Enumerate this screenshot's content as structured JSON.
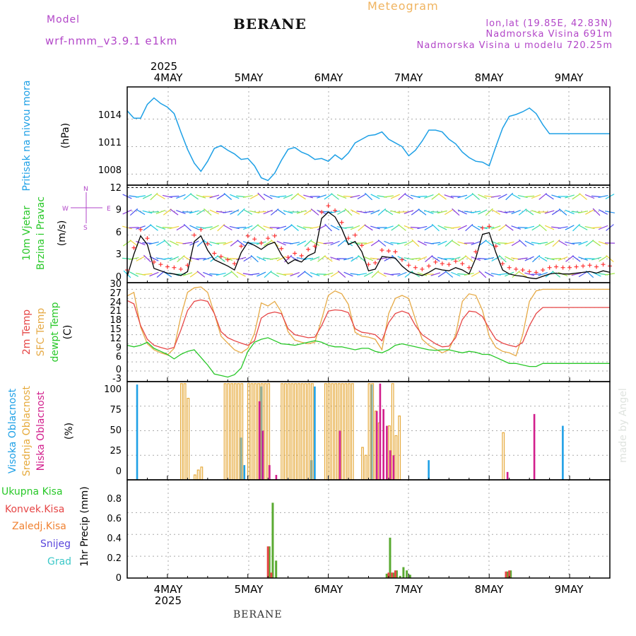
{
  "header": {
    "model_label": "Model",
    "model_name": "wrf-nmm_v3.9.1 e1km",
    "station": "BERANE",
    "title": "Meteogram",
    "coords": "lon,lat (19.85E, 42.83N)",
    "altitude": "Nadmorska Visina 691m",
    "model_altitude": "Nadmorska Visina u modelu 720.25m",
    "year": "2025",
    "footer_station": "BERANE",
    "watermark": "made by Angel"
  },
  "day_labels": [
    "4MAY",
    "5MAY",
    "6MAY",
    "7MAY",
    "8MAY",
    "9MAY"
  ],
  "panels": {
    "pressure": {
      "label": "Pritisak na nivou mora",
      "unit": "(hPa)",
      "ticks": [
        "1014",
        "1011",
        "1008"
      ]
    },
    "wind": {
      "label1": "10m Vjetar",
      "label2": "Brzina i Pravac",
      "unit": "(m/s)",
      "ticks": [
        "12",
        "9",
        "6",
        "3",
        "0"
      ],
      "compass": {
        "w": "W",
        "e": "E",
        "n": "N",
        "s": "S"
      }
    },
    "temp": {
      "label1": "2m Temp",
      "label2": "SFC Temp",
      "label3": "dewpt Temp",
      "unit": "(C)",
      "ticks": [
        "30",
        "27",
        "24",
        "21",
        "18",
        "15",
        "12",
        "9",
        "6",
        "3",
        "0",
        "-3"
      ]
    },
    "cloud": {
      "label1": "Visoka Oblacnost",
      "label2": "Srednja Oblacnost",
      "label3": "Niska Oblacnost",
      "unit": "(%)",
      "ticks": [
        "100",
        "75",
        "50",
        "25",
        "0"
      ]
    },
    "precip": {
      "label": "1hr Precip (mm)",
      "ticks": [
        "0.8",
        "0.6",
        "0.4",
        "0.2",
        "0"
      ],
      "legend": [
        "Ukupna Kisa",
        "Konvek.Kisa",
        "Zaledj.Kisa",
        "Snijeg",
        "Grad"
      ]
    }
  },
  "colors": {
    "pressure": "#1ea0e6",
    "temp2m": "#e64646",
    "sfc": "#e6aa46",
    "dew": "#28c828",
    "high_cloud": "#1ea0e6",
    "mid_cloud": "#e6aa3c",
    "low_cloud": "#d21e8c",
    "total_rain": "#5aaa32",
    "conv_rain": "#e64646",
    "frz_rain": "#f08232",
    "snow": "#5a46dc",
    "hail": "#3cc8c8",
    "wind_speed": "#000000",
    "gust": "#ff3232"
  },
  "chart_data": [
    {
      "type": "line",
      "title": "",
      "ylabel": "(hPa)",
      "ylim": [
        1006.8,
        1017.5
      ],
      "series": [
        {
          "name": "Pritisak na nivou mora",
          "x": [
            0,
            2,
            4,
            6,
            8,
            10,
            12,
            14,
            16,
            18,
            20,
            22,
            24,
            26,
            28,
            30,
            32,
            34,
            36,
            38,
            40,
            42,
            44,
            46,
            48,
            50,
            52,
            54,
            56,
            58,
            60,
            62,
            64,
            66,
            68,
            70,
            72,
            74,
            76,
            78,
            80,
            82,
            84,
            86,
            88,
            90,
            92,
            94,
            96,
            98,
            100,
            102,
            104,
            106,
            108,
            110,
            112,
            114,
            116,
            118,
            120,
            122,
            124,
            126,
            128,
            130,
            132,
            134,
            136,
            138,
            140,
            142,
            144
          ],
          "values": [
            1014.9,
            1014.1,
            1014.1,
            1015.6,
            1016.3,
            1015.7,
            1015.3,
            1014.6,
            1012.6,
            1010.7,
            1009.2,
            1008.3,
            1009.4,
            1010.8,
            1011.1,
            1010.6,
            1010.2,
            1009.6,
            1009.7,
            1008.9,
            1007.6,
            1007.3,
            1008.1,
            1009.5,
            1010.7,
            1010.9,
            1010.4,
            1010.1,
            1009.6,
            1009.7,
            1009.4,
            1010.1,
            1009.6,
            1010.3,
            1011.4,
            1011.8,
            1012.2,
            1012.3,
            1012.6,
            1011.8,
            1011.4,
            1011.0,
            1010.0,
            1010.6,
            1011.6,
            1012.8,
            1012.8,
            1012.6,
            1011.8,
            1011.3,
            1010.4,
            1009.8,
            1009.4,
            1009.3,
            1008.9,
            1011.0,
            1013.0,
            1014.3,
            1014.5,
            1014.8,
            1015.2,
            1014.6,
            1013.4,
            1012.4,
            1012.4,
            1012.4,
            1012.4,
            1012.4,
            1012.4,
            1012.4,
            1012.4,
            1012.4,
            1012.4
          ]
        }
      ]
    },
    {
      "type": "line",
      "title": "",
      "ylabel": "(m/s)",
      "ylim": [
        0,
        12.3
      ],
      "series": [
        {
          "name": "10m Vjetar",
          "x": [
            0,
            2,
            4,
            6,
            8,
            10,
            12,
            14,
            16,
            18,
            20,
            22,
            24,
            26,
            28,
            30,
            32,
            34,
            36,
            38,
            40,
            42,
            44,
            46,
            48,
            50,
            52,
            54,
            56,
            58,
            60,
            62,
            64,
            66,
            68,
            70,
            72,
            74,
            76,
            78,
            80,
            82,
            84,
            86,
            88,
            90,
            92,
            94,
            96,
            98,
            100,
            102,
            104,
            106,
            108,
            110,
            112,
            114,
            116,
            118,
            120,
            122,
            124,
            126,
            128,
            130,
            132,
            134,
            136,
            138,
            140,
            142,
            144
          ],
          "values": [
            0.8,
            3.6,
            5.9,
            4.8,
            1.8,
            1.5,
            1.2,
            1.1,
            0.9,
            1.4,
            5.2,
            5.9,
            4.1,
            2.9,
            2.5,
            2.1,
            1.6,
            3.8,
            5.1,
            4.7,
            4.2,
            4.8,
            5.1,
            3.5,
            2.4,
            2.9,
            2.6,
            3.4,
            3.8,
            8.1,
            8.9,
            8.3,
            6.8,
            4.8,
            5.2,
            3.9,
            1.5,
            1.7,
            3.3,
            3.2,
            3.1,
            2.1,
            1.4,
            1.1,
            0.9,
            1.3,
            1.8,
            1.6,
            1.5,
            1.9,
            1.6,
            1.1,
            3.1,
            6.1,
            6.3,
            3.8,
            1.6,
            1.1,
            0.9,
            0.8,
            0.6,
            0.5,
            0.8,
            1.1,
            1.2,
            1.1,
            1.1,
            1.2,
            1.3,
            1.4,
            1.2,
            1.5,
            1.3
          ]
        }
      ]
    },
    {
      "type": "line",
      "title": "",
      "ylabel": "(C)",
      "ylim": [
        -3.5,
        29.2
      ],
      "series": [
        {
          "name": "2m Temp",
          "x": [
            0,
            2,
            4,
            6,
            8,
            10,
            12,
            14,
            16,
            18,
            20,
            22,
            24,
            26,
            28,
            30,
            32,
            34,
            36,
            38,
            40,
            42,
            44,
            46,
            48,
            50,
            52,
            54,
            56,
            58,
            60,
            62,
            64,
            66,
            68,
            70,
            72,
            74,
            76,
            78,
            80,
            82,
            84,
            86,
            88,
            90,
            92,
            94,
            96,
            98,
            100,
            102,
            104,
            106,
            108,
            110,
            112,
            114,
            116,
            118,
            120,
            122,
            124,
            126,
            128,
            130,
            132,
            134,
            136,
            138,
            140,
            142,
            144
          ],
          "values": [
            23.3,
            22.2,
            15.0,
            10.5,
            8.5,
            7.8,
            7.2,
            7.8,
            13.5,
            20.0,
            23.0,
            23.5,
            23.0,
            19.0,
            13.0,
            11.0,
            10.0,
            9.2,
            8.5,
            10.0,
            17.5,
            19.0,
            19.5,
            19.0,
            14.0,
            12.0,
            11.5,
            11.0,
            11.2,
            15.0,
            19.8,
            20.2,
            20.0,
            19.3,
            14.0,
            12.8,
            12.5,
            12.0,
            10.0,
            16.0,
            19.0,
            19.8,
            19.0,
            15.0,
            12.0,
            10.5,
            9.0,
            8.0,
            8.2,
            11.0,
            17.0,
            19.8,
            19.5,
            18.0,
            14.0,
            10.5,
            9.2,
            8.5,
            8.0,
            9.5,
            15.0,
            19.0,
            21.0,
            21.0,
            21.0,
            21.0,
            21.0,
            21.0,
            21.0,
            21.0,
            21.0,
            21.0,
            21.0
          ]
        },
        {
          "name": "SFC Temp",
          "x": [
            0,
            2,
            4,
            6,
            8,
            10,
            12,
            14,
            16,
            18,
            20,
            22,
            24,
            26,
            28,
            30,
            32,
            34,
            36,
            38,
            40,
            42,
            44,
            46,
            48,
            50,
            52,
            54,
            56,
            58,
            60,
            62,
            64,
            66,
            68,
            70,
            72,
            74,
            76,
            78,
            80,
            82,
            84,
            86,
            88,
            90,
            92,
            94,
            96,
            98,
            100,
            102,
            104,
            106,
            108,
            110,
            112,
            114,
            116,
            118,
            120,
            122,
            124,
            126,
            128,
            130,
            132,
            134,
            136,
            138,
            140,
            142,
            144
          ],
          "values": [
            24.8,
            26.0,
            14.5,
            9.0,
            7.0,
            6.0,
            5.3,
            7.5,
            18.0,
            26.0,
            27.5,
            27.8,
            26.0,
            19.0,
            11.5,
            9.2,
            7.0,
            6.0,
            7.5,
            12.5,
            22.5,
            21.5,
            23.0,
            19.5,
            13.0,
            10.2,
            9.5,
            9.0,
            9.5,
            17.0,
            25.0,
            26.5,
            25.5,
            22.0,
            12.8,
            11.5,
            11.2,
            10.5,
            7.0,
            19.0,
            24.0,
            25.0,
            24.0,
            17.0,
            10.5,
            8.5,
            7.3,
            6.0,
            7.0,
            12.0,
            23.0,
            25.5,
            25.0,
            20.0,
            11.5,
            7.8,
            6.5,
            6.0,
            5.0,
            12.0,
            23.0,
            26.5,
            27.0,
            27.0,
            27.0,
            27.0,
            27.0,
            27.0,
            27.0,
            27.0,
            27.0,
            27.0,
            27.0
          ]
        },
        {
          "name": "dewpt Temp",
          "x": [
            0,
            2,
            4,
            6,
            8,
            10,
            12,
            14,
            16,
            18,
            20,
            22,
            24,
            26,
            28,
            30,
            32,
            34,
            36,
            38,
            40,
            42,
            44,
            46,
            48,
            50,
            52,
            54,
            56,
            58,
            60,
            62,
            64,
            66,
            68,
            70,
            72,
            74,
            76,
            78,
            80,
            82,
            84,
            86,
            88,
            90,
            92,
            94,
            96,
            98,
            100,
            102,
            104,
            106,
            108,
            110,
            112,
            114,
            116,
            118,
            120,
            122,
            124,
            126,
            128,
            130,
            132,
            134,
            136,
            138,
            140,
            142,
            144
          ],
          "values": [
            8.5,
            8.0,
            8.5,
            9.5,
            7.5,
            6.5,
            5.5,
            4.0,
            5.5,
            6.5,
            7.0,
            4.5,
            2.0,
            -1.0,
            -1.5,
            -2.0,
            -1.2,
            1.0,
            6.5,
            9.5,
            10.5,
            11.0,
            10.0,
            9.0,
            8.8,
            8.5,
            9.0,
            9.5,
            10.0,
            9.5,
            8.5,
            8.0,
            8.0,
            7.5,
            7.0,
            7.5,
            7.5,
            6.5,
            6.0,
            7.0,
            8.5,
            9.0,
            8.5,
            8.0,
            7.5,
            7.0,
            6.8,
            7.0,
            7.0,
            6.5,
            6.0,
            6.5,
            6.2,
            5.5,
            5.5,
            4.5,
            3.5,
            2.5,
            2.5,
            2.0,
            1.5,
            1.5,
            2.5,
            2.5,
            2.5,
            2.5,
            2.5,
            2.5,
            2.5,
            2.5,
            2.5,
            2.5,
            2.5
          ]
        }
      ]
    },
    {
      "type": "bar",
      "title": "",
      "ylabel": "(%)",
      "ylim": [
        0,
        100
      ],
      "series": [
        {
          "name": "Visoka Oblacnost",
          "x": [
            3,
            34,
            35,
            40,
            55,
            56,
            73,
            90,
            130
          ],
          "values": [
            97,
            43,
            15,
            95,
            20,
            95,
            97,
            20,
            55
          ]
        },
        {
          "name": "Srednja Oblacnost",
          "x": [
            16,
            17,
            18,
            20,
            21,
            22,
            29,
            30,
            31,
            32,
            33,
            34,
            36,
            37,
            38,
            39,
            40,
            41,
            42,
            46,
            47,
            48,
            49,
            50,
            51,
            52,
            53,
            54,
            55,
            59,
            60,
            61,
            62,
            63,
            64,
            65,
            66,
            67,
            70,
            71,
            72,
            73,
            74,
            75,
            78,
            79,
            80,
            81,
            112
          ],
          "values": [
            98,
            98,
            83,
            5,
            10,
            13,
            98,
            98,
            98,
            98,
            98,
            98,
            98,
            98,
            98,
            98,
            98,
            98,
            98,
            98,
            98,
            98,
            98,
            98,
            98,
            98,
            98,
            98,
            98,
            98,
            98,
            98,
            98,
            98,
            98,
            98,
            98,
            98,
            33,
            25,
            98,
            98,
            70,
            58,
            55,
            98,
            45,
            65,
            48
          ]
        },
        {
          "name": "Niska Oblacnost",
          "x": [
            39,
            40,
            42,
            44,
            63,
            74,
            75,
            76,
            77,
            78,
            79,
            113,
            121
          ],
          "values": [
            80,
            50,
            15,
            5,
            50,
            70,
            98,
            72,
            55,
            30,
            25,
            8,
            67
          ]
        }
      ]
    },
    {
      "type": "bar",
      "title": "",
      "ylabel": "1hr Precip (mm)",
      "ylim": [
        0,
        0.9
      ],
      "series": [
        {
          "name": "Ukupna Kisa",
          "x": [
            42,
            43,
            44,
            77,
            78,
            79,
            80,
            81,
            82,
            83,
            84,
            113,
            114
          ],
          "values": [
            0.29,
            0.69,
            0.16,
            0.04,
            0.37,
            0.05,
            0.07,
            0.02,
            0.1,
            0.07,
            0.03,
            0.06,
            0.07
          ]
        },
        {
          "name": "Konvek.Kisa",
          "x": [
            42,
            43,
            78,
            79,
            80,
            113,
            114
          ],
          "values": [
            0.29,
            0.05,
            0.05,
            0.05,
            0.07,
            0.06,
            0.07
          ]
        }
      ]
    }
  ]
}
